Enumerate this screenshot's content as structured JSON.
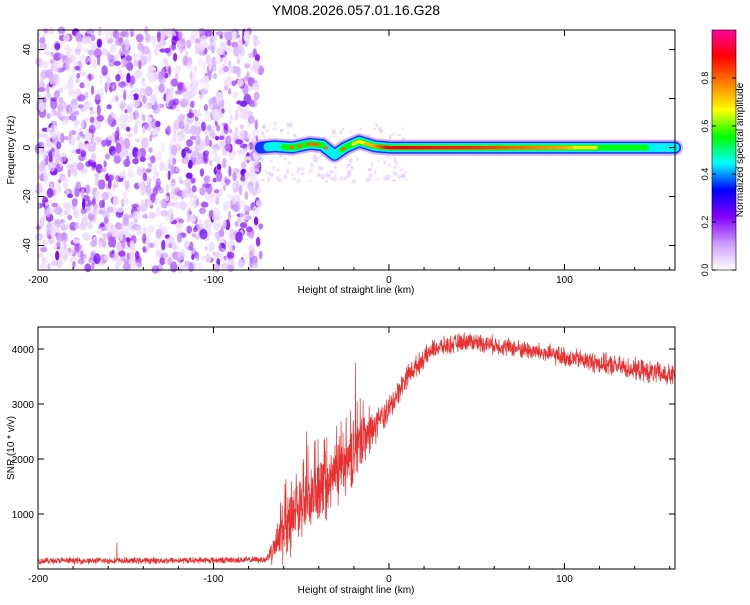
{
  "title": "YM08.2026.057.01.16.G28",
  "chart_data": [
    {
      "type": "heatmap",
      "name": "spectrogram",
      "xlabel": "Height of straight line (km)",
      "ylabel": "Frequency (Hz)",
      "xlim": [
        -200,
        163
      ],
      "ylim": [
        -50,
        48
      ],
      "xticks": [
        -200,
        -100,
        0,
        100
      ],
      "yticks": [
        -40,
        -20,
        0,
        20,
        40
      ],
      "tick_labels_x": [
        "-200",
        "-100",
        "0",
        "100"
      ],
      "tick_labels_y": [
        "-40",
        "-20",
        "0",
        "20",
        "40"
      ],
      "noise_region_x": [
        -200,
        -73
      ],
      "signal_region_x": [
        -73,
        163
      ],
      "signal_track": [
        {
          "x": -73,
          "f": 0.0,
          "amp": 0.35
        },
        {
          "x": -65,
          "f": 0.5,
          "amp": 0.45
        },
        {
          "x": -55,
          "f": 0.0,
          "amp": 0.55
        },
        {
          "x": -45,
          "f": 1.5,
          "amp": 0.6
        },
        {
          "x": -38,
          "f": 1.0,
          "amp": 0.5
        },
        {
          "x": -31,
          "f": -3.0,
          "amp": 0.4
        },
        {
          "x": -25,
          "f": 0.0,
          "amp": 0.55
        },
        {
          "x": -17,
          "f": 2.5,
          "amp": 0.7
        },
        {
          "x": -8,
          "f": 0.5,
          "amp": 0.75
        },
        {
          "x": 0,
          "f": 0.0,
          "amp": 0.9
        },
        {
          "x": 50,
          "f": 0.0,
          "amp": 0.85
        },
        {
          "x": 75,
          "f": 0.0,
          "amp": 0.8
        },
        {
          "x": 100,
          "f": 0.0,
          "amp": 0.75
        },
        {
          "x": 130,
          "f": 0.0,
          "amp": 0.55
        },
        {
          "x": 163,
          "f": 0.0,
          "amp": 0.45
        }
      ],
      "colorbar": {
        "label": "Normalized spectral amplitude",
        "range": [
          0,
          1
        ],
        "ticks": [
          0.0,
          0.2,
          0.4,
          0.6,
          0.8
        ],
        "tick_labels": [
          "0.0",
          "0.2",
          "0.4",
          "0.6",
          "0.8"
        ],
        "colors": [
          "#ffffff",
          "#cc99ff",
          "#8000ff",
          "#0000ff",
          "#00ffff",
          "#00ff00",
          "#ffff00",
          "#ff8000",
          "#ff0000",
          "#ff00a0"
        ]
      }
    },
    {
      "type": "line",
      "name": "snr",
      "xlabel": "Height of straight line (km)",
      "ylabel": "SNR (10 * v/v)",
      "xlim": [
        -200,
        163
      ],
      "ylim": [
        0,
        4400
      ],
      "xticks": [
        -200,
        -100,
        0,
        100
      ],
      "yticks": [
        1000,
        2000,
        3000,
        4000
      ],
      "tick_labels_x": [
        "-200",
        "-100",
        "0",
        "100"
      ],
      "tick_labels_y": [
        "1000",
        "2000",
        "3000",
        "4000"
      ],
      "color": "#e83030",
      "envelope": [
        {
          "x": -200,
          "y": 150,
          "noise": 70
        },
        {
          "x": -150,
          "y": 150,
          "noise": 70
        },
        {
          "x": -100,
          "y": 160,
          "noise": 70
        },
        {
          "x": -70,
          "y": 170,
          "noise": 70
        },
        {
          "x": -62,
          "y": 600,
          "noise": 600
        },
        {
          "x": -50,
          "y": 1100,
          "noise": 700
        },
        {
          "x": -35,
          "y": 1500,
          "noise": 700
        },
        {
          "x": -20,
          "y": 2100,
          "noise": 700
        },
        {
          "x": -10,
          "y": 2500,
          "noise": 400
        },
        {
          "x": 0,
          "y": 2900,
          "noise": 300
        },
        {
          "x": 10,
          "y": 3500,
          "noise": 250
        },
        {
          "x": 25,
          "y": 4000,
          "noise": 200
        },
        {
          "x": 45,
          "y": 4150,
          "noise": 200
        },
        {
          "x": 75,
          "y": 4000,
          "noise": 200
        },
        {
          "x": 110,
          "y": 3800,
          "noise": 220
        },
        {
          "x": 163,
          "y": 3500,
          "noise": 250
        }
      ],
      "spikes": [
        {
          "x": -47,
          "y": 2500
        },
        {
          "x": -19,
          "y": 3750
        },
        {
          "x": -155,
          "y": 480
        }
      ]
    }
  ]
}
